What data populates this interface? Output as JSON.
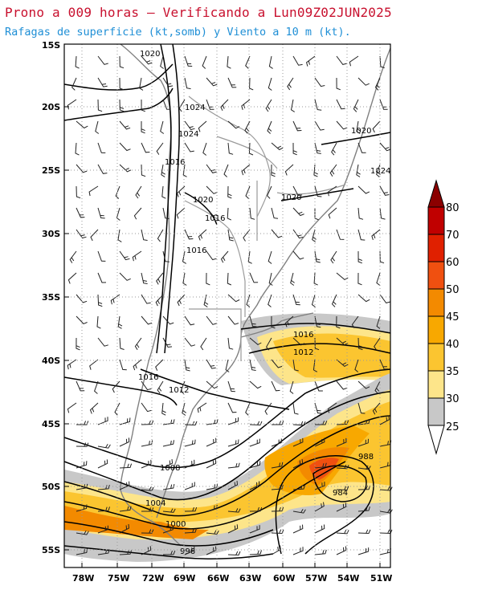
{
  "header": {
    "title": "Prono a 009 horas – Verificando a Lun09Z02JUN2025",
    "subtitle": "Rafagas de superficie (kt,somb) y Viento a 10 m (kt)."
  },
  "map": {
    "lat_labels": [
      "15S",
      "20S",
      "25S",
      "30S",
      "35S",
      "40S",
      "45S",
      "50S",
      "55S"
    ],
    "lon_labels": [
      "78W",
      "75W",
      "72W",
      "69W",
      "66W",
      "63W",
      "60W",
      "57W",
      "54W",
      "51W"
    ],
    "isobar_labels": [
      "1020",
      "1024",
      "1024",
      "1016",
      "1020",
      "1016",
      "1016",
      "1020",
      "1024",
      "1020",
      "1016",
      "1012",
      "1016",
      "1012",
      "1008",
      "1004",
      "1000",
      "996",
      "988",
      "984"
    ]
  },
  "colorbar": {
    "labels": [
      "80",
      "70",
      "60",
      "50",
      "45",
      "40",
      "35",
      "30",
      "25"
    ],
    "colors": [
      "#8b0000",
      "#c00000",
      "#e02000",
      "#f05010",
      "#f38a00",
      "#f8a800",
      "#fbc530",
      "#fde58a",
      "#c8c8c8"
    ]
  },
  "colors": {
    "title": "#c8102e",
    "subtitle": "#1f8fd6",
    "grid": "#9a9a9a",
    "land": "#808080",
    "isobar": "#000000"
  }
}
